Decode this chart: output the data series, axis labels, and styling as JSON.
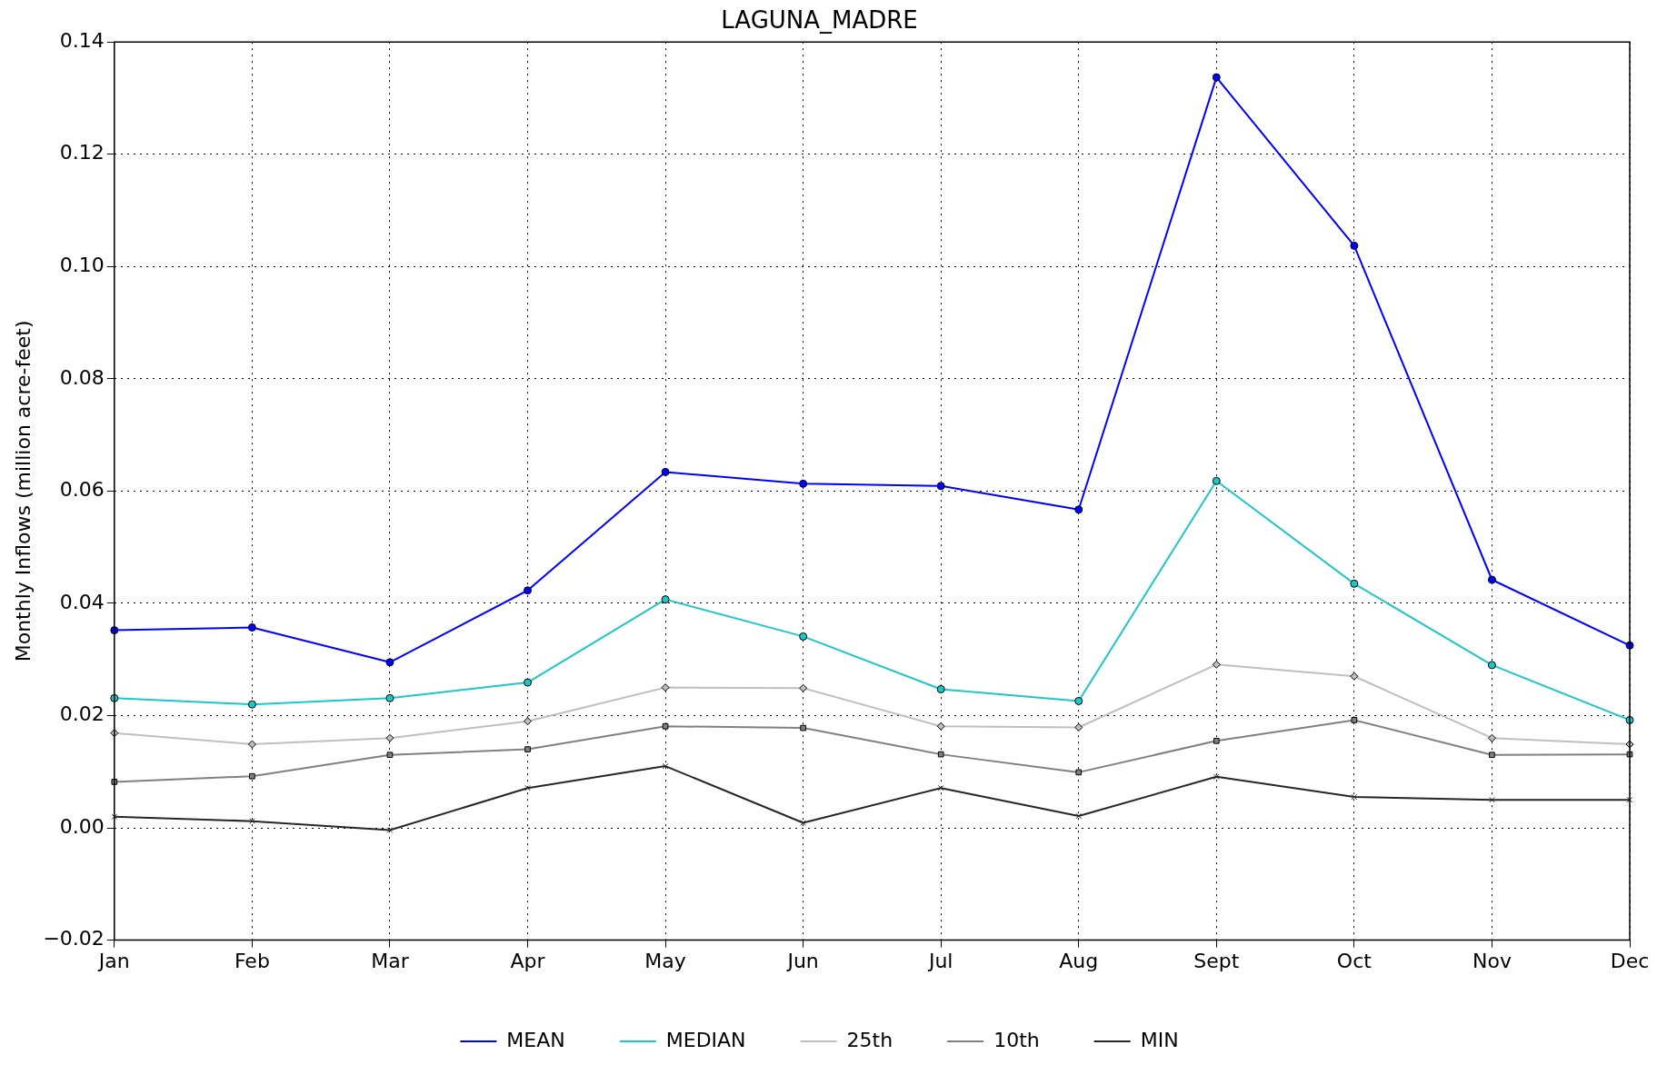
{
  "chart_data": {
    "type": "line",
    "title": "LAGUNA_MADRE",
    "ylabel": "Monthly Inflows (million acre-feet)",
    "categories": [
      "Jan",
      "Feb",
      "Mar",
      "Apr",
      "May",
      "Jun",
      "Jul",
      "Aug",
      "Sept",
      "Oct",
      "Nov",
      "Dec"
    ],
    "series": [
      {
        "name": "MEAN",
        "color": "#0000ff",
        "marker": "circle",
        "values": [
          0.0352,
          0.0357,
          0.0295,
          0.0423,
          0.0634,
          0.0613,
          0.0609,
          0.0567,
          0.1337,
          0.1037,
          0.0442,
          0.0325
        ]
      },
      {
        "name": "MEDIAN",
        "color": "#1fc6c6",
        "marker": "circle",
        "values": [
          0.0231,
          0.022,
          0.0231,
          0.0259,
          0.0407,
          0.0341,
          0.0247,
          0.0226,
          0.0618,
          0.0435,
          0.029,
          0.0192
        ]
      },
      {
        "name": "25th",
        "color": "#bfbfbf",
        "marker": "diamond",
        "values": [
          0.0169,
          0.0149,
          0.016,
          0.019,
          0.025,
          0.0249,
          0.0181,
          0.0179,
          0.0291,
          0.027,
          0.016,
          0.0149
        ]
      },
      {
        "name": "10th",
        "color": "#808080",
        "marker": "square",
        "values": [
          0.0082,
          0.0092,
          0.013,
          0.014,
          0.0181,
          0.0178,
          0.0131,
          0.0099,
          0.0155,
          0.0192,
          0.013,
          0.0131
        ]
      },
      {
        "name": "MIN",
        "color": "#262626",
        "marker": "cross",
        "values": [
          0.002,
          0.0012,
          -0.0004,
          0.0071,
          0.011,
          0.0009,
          0.0071,
          0.0021,
          0.0091,
          0.0055,
          0.005,
          0.005
        ]
      }
    ],
    "ylim": [
      -0.02,
      0.14
    ],
    "yticks": [
      {
        "value": -0.02,
        "label": "−0.02"
      },
      {
        "value": 0,
        "label": "0.00"
      },
      {
        "value": 0.02,
        "label": "0.02"
      },
      {
        "value": 0.04,
        "label": "0.04"
      },
      {
        "value": 0.06,
        "label": "0.06"
      },
      {
        "value": 0.08,
        "label": "0.08"
      },
      {
        "value": 0.1,
        "label": "0.10"
      },
      {
        "value": 0.12,
        "label": "0.12"
      },
      {
        "value": 0.14,
        "label": "0.14"
      }
    ],
    "grid": true,
    "legend": "bottom",
    "line_style": "solid"
  }
}
